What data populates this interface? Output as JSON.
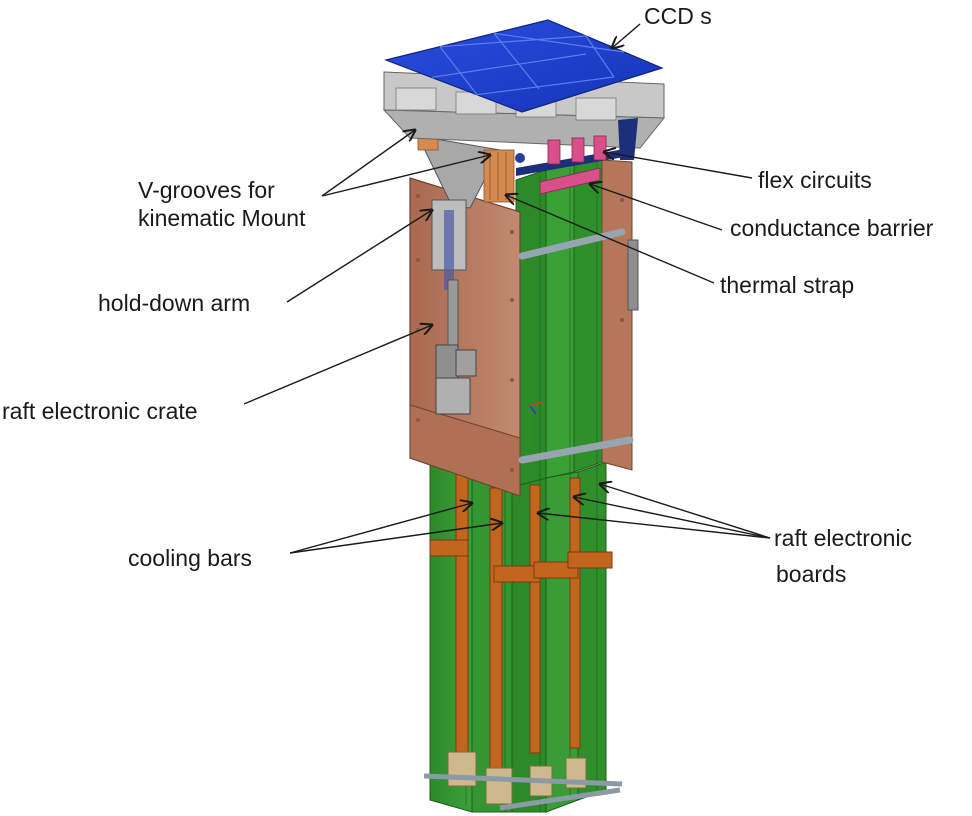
{
  "diagram": {
    "labels": {
      "ccds": "CCD s",
      "vgrooves_line1": "V-grooves for",
      "vgrooves_line2": "kinematic Mount",
      "flex": "flex circuits",
      "conductance": "conductance barrier",
      "thermal": "thermal strap",
      "holddown": "hold-down arm",
      "crate": "raft electronic crate",
      "cooling": "cooling bars",
      "boards_line1": "raft electronic",
      "boards_line2": "boards"
    },
    "colors": {
      "ccd_blue": "#1f3fd0",
      "crate_copper": "#b7795e",
      "board_green": "#2f8f2a",
      "cooling_bar": "#c2651f",
      "frame_gray": "#b8b8b8",
      "arm_gray": "#9c9c9c",
      "flex_navy": "#1c2f7a",
      "barrier_pink": "#d94f8a",
      "connector_tan": "#cdb98d",
      "leader_line": "#1a1a1a"
    }
  }
}
